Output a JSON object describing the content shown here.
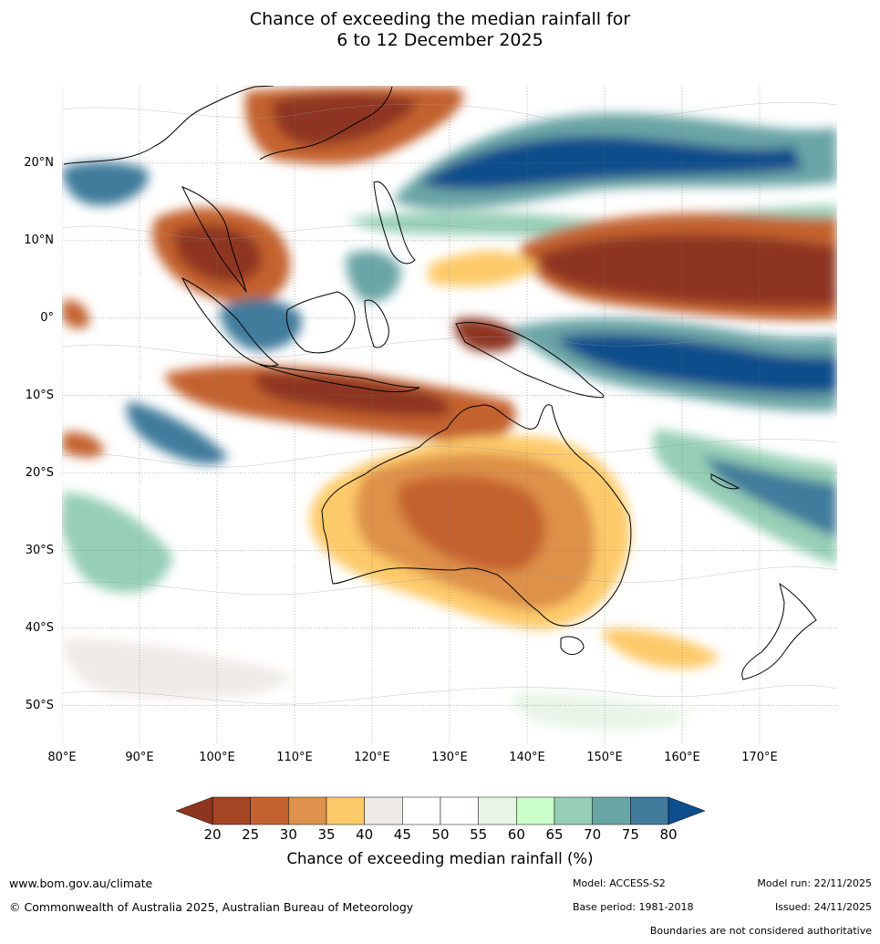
{
  "title": {
    "line1": "Chance of exceeding the median rainfall for",
    "line2": "6 to 12 December 2025"
  },
  "map": {
    "region": "Australia, Maritime Continent and western Pacific",
    "lat_labels": [
      "20°N",
      "10°N",
      "0°",
      "10°S",
      "20°S",
      "30°S",
      "40°S",
      "50°S"
    ],
    "lat_values": [
      20,
      10,
      0,
      -10,
      -20,
      -30,
      -40,
      -50
    ],
    "lon_labels": [
      "80°E",
      "90°E",
      "100°E",
      "110°E",
      "120°E",
      "130°E",
      "140°E",
      "150°E",
      "160°E",
      "170°E"
    ],
    "lon_values": [
      80,
      90,
      100,
      110,
      120,
      130,
      140,
      150,
      160,
      170
    ],
    "lon_range": [
      80,
      180
    ],
    "lat_range": [
      -55,
      30
    ]
  },
  "colorbar": {
    "ticks": [
      "20",
      "25",
      "30",
      "35",
      "40",
      "45",
      "50",
      "55",
      "60",
      "65",
      "70",
      "75",
      "80"
    ],
    "tick_values": [
      20,
      25,
      30,
      35,
      40,
      45,
      50,
      55,
      60,
      65,
      70,
      75,
      80
    ],
    "colors": [
      "#a44524",
      "#c4622f",
      "#de914a",
      "#fdca6a",
      "#eeebe6",
      "#ffffff",
      "#ffffff",
      "#e8f6e7",
      "#c9fdc9",
      "#96cfb6",
      "#6aa5a6",
      "#417b9b"
    ],
    "under_color": "#8e3520",
    "over_color": "#0d4e8c",
    "label": "Chance of exceeding median rainfall (%)"
  },
  "footer": {
    "website": "www.bom.gov.au/climate",
    "copyright": "© Commonwealth of Australia 2025, Australian Bureau of Meteorology",
    "model": "Model: ACCESS-S2",
    "base_period": "Base period: 1981-2018",
    "model_run": "Model run: 22/11/2025",
    "issued": "Issued: 24/11/2025",
    "disclaimer": "Boundaries are not considered authoritative"
  }
}
